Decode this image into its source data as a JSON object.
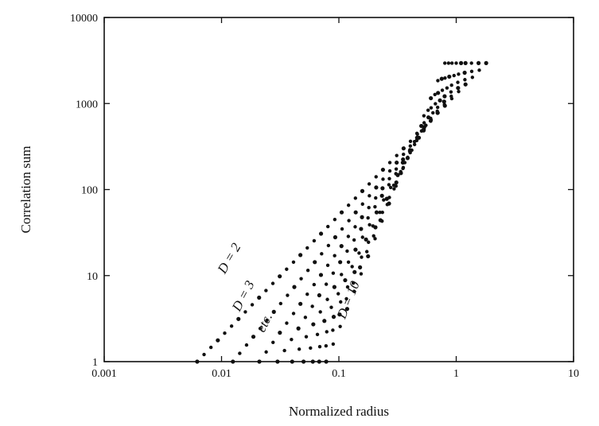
{
  "chart_data": {
    "type": "scatter",
    "title": "",
    "xlabel": "Normalized radius",
    "ylabel": "Correlation sum",
    "x_scale": "log",
    "y_scale": "log",
    "xlim": [
      0.001,
      10
    ],
    "ylim": [
      1,
      10000
    ],
    "x_ticks": [
      {
        "value": 0.001,
        "label": "0.001"
      },
      {
        "value": 0.01,
        "label": "0.01"
      },
      {
        "value": 0.1,
        "label": "0.1"
      },
      {
        "value": 1,
        "label": "1"
      },
      {
        "value": 10,
        "label": "10"
      }
    ],
    "y_ticks": [
      {
        "value": 1,
        "label": "1"
      },
      {
        "value": 10,
        "label": "10"
      },
      {
        "value": 100,
        "label": "100"
      },
      {
        "value": 1000,
        "label": "1000"
      },
      {
        "value": 10000,
        "label": "10000"
      }
    ],
    "grid": false,
    "saturation_value": 2950,
    "series": [
      {
        "x_start": 0.0062,
        "x_end": 1.8
      },
      {
        "x_start": 0.0125,
        "x_end": 1.55
      },
      {
        "x_start": 0.021,
        "x_end": 1.35
      },
      {
        "x_start": 0.03,
        "x_end": 1.2
      },
      {
        "x_start": 0.04,
        "x_end": 1.1
      },
      {
        "x_start": 0.05,
        "x_end": 1.0
      },
      {
        "x_start": 0.06,
        "x_end": 0.92
      },
      {
        "x_start": 0.068,
        "x_end": 0.86
      },
      {
        "x_start": 0.078,
        "x_end": 0.8
      }
    ],
    "annotations": [
      {
        "text": "D = 2",
        "x": 0.0125,
        "y": 15
      },
      {
        "text": "D = 3",
        "x": 0.0165,
        "y": 5.5
      },
      {
        "text": "etc.",
        "x": 0.025,
        "y": 2.7
      },
      {
        "text": "D = 10",
        "x": 0.13,
        "y": 5
      }
    ]
  }
}
